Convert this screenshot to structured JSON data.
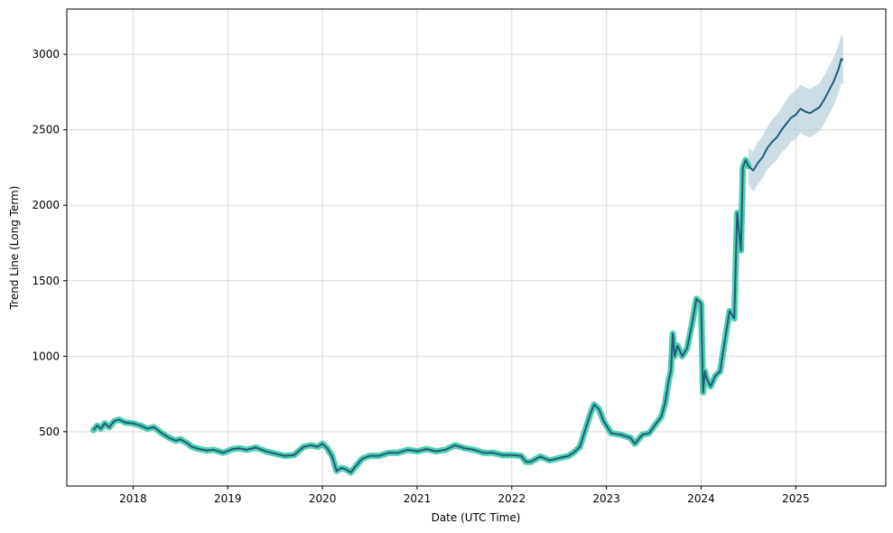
{
  "chart_data": {
    "type": "line",
    "title": "",
    "xlabel": "Date (UTC Time)",
    "ylabel": "Trend Line (Long Term)",
    "grid": true,
    "xlim": [
      2017.3,
      2025.95
    ],
    "ylim": [
      140,
      3300
    ],
    "x_ticks": [
      {
        "value": 2018,
        "label": "2018"
      },
      {
        "value": 2019,
        "label": "2019"
      },
      {
        "value": 2020,
        "label": "2020"
      },
      {
        "value": 2021,
        "label": "2021"
      },
      {
        "value": 2022,
        "label": "2022"
      },
      {
        "value": 2023,
        "label": "2023"
      },
      {
        "value": 2024,
        "label": "2024"
      },
      {
        "value": 2025,
        "label": "2025"
      }
    ],
    "y_ticks": [
      {
        "value": 500,
        "label": "500"
      },
      {
        "value": 1000,
        "label": "1000"
      },
      {
        "value": 1500,
        "label": "1500"
      },
      {
        "value": 2000,
        "label": "2000"
      },
      {
        "value": 2500,
        "label": "2500"
      },
      {
        "value": 3000,
        "label": "3000"
      }
    ],
    "colors": {
      "historical_glow": "#4fd1b0",
      "trend_line": "#1f5b7a",
      "forecast_band": "#b8cfdc"
    },
    "series": [
      {
        "kind": "historical",
        "x": [
          2017.58,
          2017.62,
          2017.66,
          2017.7,
          2017.75,
          2017.8,
          2017.85,
          2017.92,
          2018.0,
          2018.08,
          2018.15,
          2018.22,
          2018.3,
          2018.38,
          2018.45,
          2018.5,
          2018.58,
          2018.62,
          2018.7,
          2018.78,
          2018.85,
          2018.95,
          2019.05,
          2019.12,
          2019.2,
          2019.3,
          2019.4,
          2019.5,
          2019.6,
          2019.7,
          2019.8,
          2019.88,
          2019.95,
          2020.0,
          2020.05,
          2020.1,
          2020.15,
          2020.2,
          2020.25,
          2020.3,
          2020.35,
          2020.42,
          2020.5,
          2020.6,
          2020.7,
          2020.8,
          2020.9,
          2021.0,
          2021.1,
          2021.2,
          2021.3,
          2021.4,
          2021.5,
          2021.6,
          2021.7,
          2021.8,
          2021.9,
          2022.0,
          2022.1,
          2022.15,
          2022.2,
          2022.3,
          2022.4,
          2022.5,
          2022.6,
          2022.65,
          2022.72,
          2022.78,
          2022.83,
          2022.87,
          2022.92,
          2022.97,
          2023.05,
          2023.15,
          2023.25,
          2023.3,
          2023.38,
          2023.45,
          2023.52,
          2023.58,
          2023.62,
          2023.66,
          2023.68,
          2023.7,
          2023.72,
          2023.75,
          2023.8,
          2023.85,
          2023.9,
          2023.95,
          2024.0,
          2024.02,
          2024.04,
          2024.06,
          2024.1,
          2024.15,
          2024.2,
          2024.25,
          2024.3,
          2024.35,
          2024.38,
          2024.42,
          2024.44,
          2024.47,
          2024.5
        ],
        "y": [
          510,
          540,
          520,
          555,
          530,
          570,
          580,
          560,
          555,
          540,
          520,
          530,
          490,
          460,
          440,
          450,
          420,
          400,
          385,
          375,
          380,
          360,
          385,
          390,
          380,
          395,
          370,
          355,
          340,
          345,
          400,
          410,
          400,
          420,
          390,
          340,
          240,
          260,
          250,
          230,
          270,
          320,
          340,
          340,
          360,
          360,
          380,
          370,
          385,
          370,
          380,
          410,
          390,
          380,
          360,
          360,
          345,
          345,
          340,
          300,
          300,
          335,
          310,
          325,
          340,
          360,
          400,
          520,
          620,
          680,
          650,
          570,
          490,
          480,
          460,
          420,
          480,
          490,
          550,
          600,
          690,
          850,
          900,
          1150,
          1000,
          1070,
          1000,
          1050,
          1200,
          1380,
          1350,
          760,
          900,
          850,
          800,
          870,
          900,
          1100,
          1300,
          1250,
          1950,
          1700,
          2250,
          2300,
          2260
        ],
        "name": ""
      },
      {
        "kind": "forecast",
        "x": [
          2024.5,
          2024.55,
          2024.6,
          2024.65,
          2024.7,
          2024.75,
          2024.8,
          2024.85,
          2024.9,
          2024.95,
          2025.0,
          2025.05,
          2025.1,
          2025.15,
          2025.2,
          2025.25,
          2025.3,
          2025.35,
          2025.4,
          2025.45,
          2025.48,
          2025.5
        ],
        "y": [
          2260,
          2230,
          2280,
          2320,
          2380,
          2420,
          2450,
          2500,
          2540,
          2580,
          2600,
          2640,
          2620,
          2610,
          2630,
          2650,
          2700,
          2760,
          2820,
          2900,
          2970,
          2960
        ],
        "lower": [
          2140,
          2090,
          2140,
          2180,
          2240,
          2270,
          2300,
          2350,
          2380,
          2420,
          2440,
          2480,
          2460,
          2450,
          2470,
          2490,
          2540,
          2600,
          2660,
          2740,
          2810,
          2800
        ],
        "upper": [
          2380,
          2360,
          2420,
          2460,
          2520,
          2570,
          2600,
          2650,
          2700,
          2740,
          2760,
          2800,
          2780,
          2770,
          2790,
          2810,
          2860,
          2920,
          2980,
          3060,
          3130,
          3120
        ],
        "name": ""
      }
    ]
  }
}
